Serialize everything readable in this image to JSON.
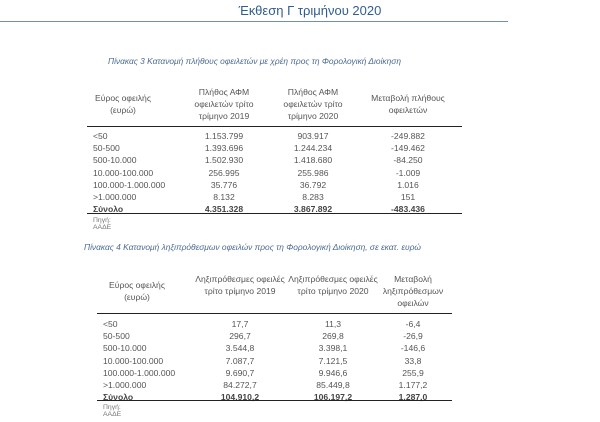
{
  "header": {
    "title": "Έκθεση Γ τριμήνου 2020"
  },
  "table3": {
    "caption": "Πίνακας 3 Κατανομή πλήθους οφειλετών με χρέη προς τη Φορολογική Διοίκηση",
    "columns": [
      "Εύρος οφειλής (ευρώ)",
      "Πλήθος ΑΦΜ οφειλετών τρίτο τρίμηνο 2019",
      "Πλήθος ΑΦΜ οφειλετών τρίτο τρίμηνο 2020",
      "Μεταβολή πλήθους οφειλετών"
    ],
    "rows": [
      [
        "<50",
        "1.153.799",
        "903.917",
        "-249.882"
      ],
      [
        "50-500",
        "1.393.696",
        "1.244.234",
        "-149.462"
      ],
      [
        "500-10.000",
        "1.502.930",
        "1.418.680",
        "-84.250"
      ],
      [
        "10.000-100.000",
        "256.995",
        "255.986",
        "-1.009"
      ],
      [
        "100.000-1.000.000",
        "35.776",
        "36.792",
        "1.016"
      ],
      [
        ">1.000.000",
        "8.132",
        "8.283",
        "151"
      ],
      [
        "Σύνολο",
        "4.351.328",
        "3.867.892",
        "-483.436"
      ]
    ],
    "source": "Πηγή: ΑΑΔΕ"
  },
  "table4": {
    "caption": "Πίνακας 4 Κατανομή ληξιπρόθεσμων οφειλών προς τη Φορολογική Διοίκηση, σε εκατ. ευρώ",
    "columns": [
      "Εύρος οφειλής (ευρώ)",
      "Ληξιπρόθεσμες οφειλές τρίτο τρίμηνο 2019",
      "Ληξιπρόθεσμες οφειλές τρίτο τρίμηνο 2020",
      "Μεταβολή ληξιπρόθεσμων οφειλών"
    ],
    "rows": [
      [
        "<50",
        "17,7",
        "11,3",
        "-6,4"
      ],
      [
        "50-500",
        "296,7",
        "269,8",
        "-26,9"
      ],
      [
        "500-10.000",
        "3.544,8",
        "3.398,1",
        "-146,6"
      ],
      [
        "10.000-100.000",
        "7.087,7",
        "7.121,5",
        "33,8"
      ],
      [
        "100.000-1.000.000",
        "9.690,7",
        "9.946,6",
        "255,9"
      ],
      [
        ">1.000.000",
        "84.272,7",
        "85.449,8",
        "1.177,2"
      ],
      [
        "Σύνολο",
        "104.910,2",
        "106.197,2",
        "1.287,0"
      ]
    ],
    "source": "Πηγή: ΑΑΔΕ"
  }
}
